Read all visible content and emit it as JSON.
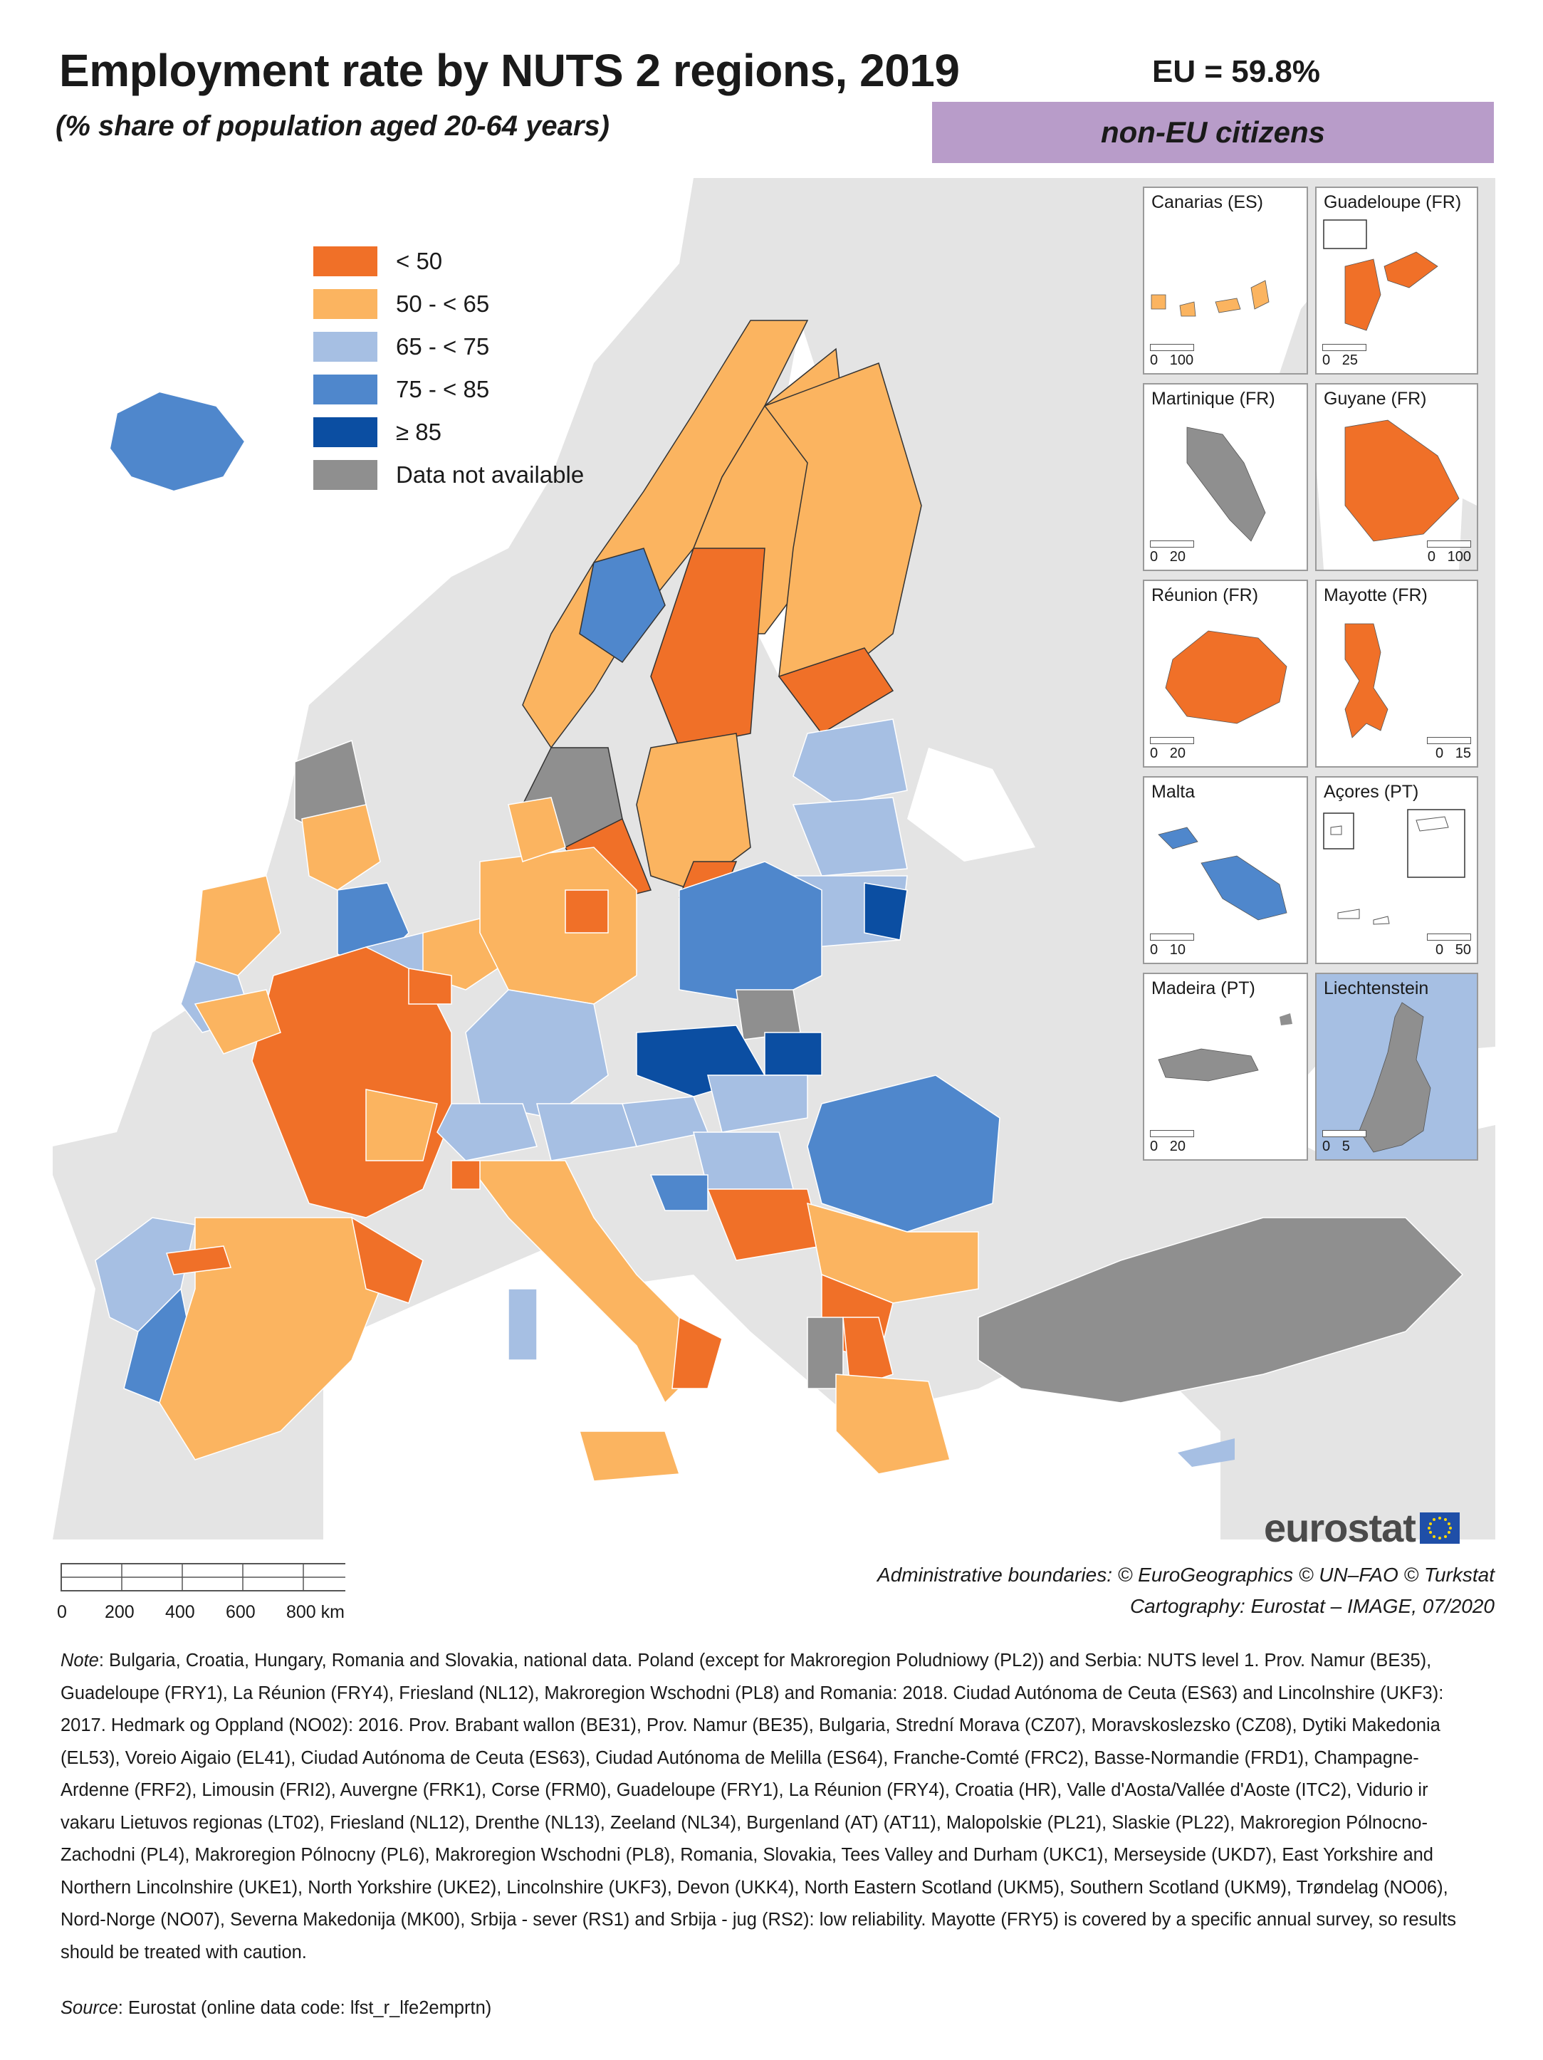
{
  "title": "Employment rate by NUTS 2 regions, 2019",
  "subtitle": "(% share of population aged 20-64 years)",
  "eu_value": "EU = 59.8%",
  "group": "non-EU citizens",
  "colors": {
    "lt50": "#f07028",
    "50to65": "#fbb460",
    "65to75": "#a6bfe3",
    "75to85": "#4f87cc",
    "ge85": "#0b4ea2",
    "na": "#8f8f8f",
    "non_eu": "#e4e4e4",
    "sea": "#ffffff",
    "badge": "#b89cc9"
  },
  "legend": [
    {
      "label": "< 50",
      "color": "#f07028"
    },
    {
      "label": "50 - < 65",
      "color": "#fbb460"
    },
    {
      "label": "65 - < 75",
      "color": "#a6bfe3"
    },
    {
      "label": "75 - < 85",
      "color": "#4f87cc"
    },
    {
      "label": "≥ 85",
      "color": "#0b4ea2"
    },
    {
      "label": "Data not available",
      "color": "#8f8f8f"
    }
  ],
  "insets": [
    {
      "name": "Canarias (ES)",
      "scale": [
        "0",
        "100"
      ],
      "color": "#fbb460"
    },
    {
      "name": "Guadeloupe (FR)",
      "scale": [
        "0",
        "25"
      ],
      "color": "#f07028"
    },
    {
      "name": "Martinique (FR)",
      "scale": [
        "0",
        "20"
      ],
      "color": "#8f8f8f"
    },
    {
      "name": "Guyane (FR)",
      "scale": [
        "0",
        "100"
      ],
      "color": "#f07028"
    },
    {
      "name": "Réunion (FR)",
      "scale": [
        "0",
        "20"
      ],
      "color": "#f07028"
    },
    {
      "name": "Mayotte (FR)",
      "scale": [
        "0",
        "15"
      ],
      "color": "#f07028"
    },
    {
      "name": "Malta",
      "scale": [
        "0",
        "10"
      ],
      "color": "#4f87cc"
    },
    {
      "name": "Açores (PT)",
      "scale": [
        "0",
        "50"
      ],
      "color": "#ffffff"
    },
    {
      "name": "Madeira (PT)",
      "scale": [
        "0",
        "20"
      ],
      "color": "#8f8f8f"
    },
    {
      "name": "Liechtenstein",
      "scale": [
        "0",
        "5"
      ],
      "color": "#8f8f8f"
    }
  ],
  "logo": "eurostat",
  "scale": {
    "ticks": [
      "0",
      "200",
      "400",
      "600",
      "800 km"
    ]
  },
  "attribution": {
    "boundaries": "Administrative boundaries: © EuroGeographics © UN–FAO © Turkstat",
    "cartography": "Cartography: Eurostat – IMAGE, 07/2020"
  },
  "note": {
    "label": "Note",
    "text": ": Bulgaria, Croatia, Hungary, Romania and Slovakia, national data. Poland (except for Makroregion Poludniowy (PL2)) and Serbia: NUTS level 1. Prov. Namur (BE35), Guadeloupe (FRY1), La Réunion (FRY4), Friesland (NL12), Makroregion Wschodni (PL8) and Romania: 2018. Ciudad Autónoma de Ceuta (ES63) and Lincolnshire (UKF3): 2017. Hedmark og Oppland (NO02): 2016. Prov. Brabant wallon (BE31), Prov. Namur (BE35), Bulgaria, Strední Morava (CZ07), Moravskoslezsko (CZ08), Dytiki Makedonia (EL53), Voreio Aigaio (EL41), Ciudad Autónoma de Ceuta (ES63), Ciudad Autónoma de Melilla (ES64), Franche-Comté (FRC2), Basse-Normandie (FRD1), Champagne-Ardenne (FRF2), Limousin (FRI2), Auvergne (FRK1), Corse (FRM0), Guadeloupe (FRY1), La Réunion (FRY4), Croatia (HR), Valle d'Aosta/Vallée d'Aoste (ITC2), Vidurio ir vakaru Lietuvos regionas (LT02), Friesland (NL12), Drenthe (NL13), Zeeland (NL34), Burgenland (AT) (AT11), Malopolskie (PL21), Slaskie (PL22), Makroregion Pólnocno-Zachodni (PL4), Makroregion Pólnocny (PL6), Makroregion Wschodni (PL8), Romania, Slovakia, Tees Valley and Durham (UKC1), Merseyside (UKD7), East Yorkshire and Northern Lincolnshire (UKE1), North Yorkshire (UKE2), Lincolnshire (UKF3), Devon (UKK4), North Eastern Scotland (UKM5), Southern Scotland (UKM9), Trøndelag (NO06), Nord-Norge (NO07), Severna Makedonija (MK00), Srbija - sever (RS1) and Srbija - jug (RS2): low reliability. Mayotte (FRY5) is covered by a specific annual survey, so results should be treated with caution."
  },
  "source": {
    "label": "Source",
    "text": ": Eurostat (online data code: lfst_r_lfe2emprtn)"
  }
}
